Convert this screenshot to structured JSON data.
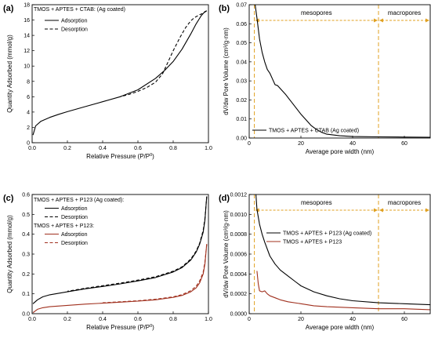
{
  "colors": {
    "black": "#000000",
    "red": "#a0301e",
    "orange": "#e0a020"
  },
  "chart_data": [
    {
      "panel": "(a)",
      "type": "line",
      "xlabel": "Relative Pressure (P/P",
      "xlabel_sup": "0",
      "xlabel_close": ")",
      "ylabel": "Quantity Adsorbed (mmol/g)",
      "xlim": [
        0,
        1.0
      ],
      "ylim": [
        0,
        18
      ],
      "xticks": [
        0.0,
        0.2,
        0.4,
        0.6,
        0.8,
        1.0
      ],
      "xtick_labels": [
        "0.0",
        "0.2",
        "0.4",
        "0.6",
        "0.8",
        "1.0"
      ],
      "yticks": [
        0,
        2,
        4,
        6,
        8,
        10,
        12,
        14,
        16,
        18
      ],
      "ytick_labels": [
        "0",
        "2",
        "4",
        "6",
        "8",
        "10",
        "12",
        "14",
        "16",
        "18"
      ],
      "legend_title": "TMOS + APTES + CTAB: (Ag coated)",
      "legend_position": "top-left",
      "series": [
        {
          "name": "Adsorption",
          "color": "#000000",
          "dash": "solid",
          "x": [
            0.005,
            0.02,
            0.05,
            0.1,
            0.15,
            0.2,
            0.3,
            0.4,
            0.5,
            0.6,
            0.7,
            0.75,
            0.8,
            0.85,
            0.9,
            0.93,
            0.96,
            0.98,
            0.99
          ],
          "y": [
            1.0,
            2.2,
            2.8,
            3.3,
            3.7,
            4.05,
            4.7,
            5.35,
            6.0,
            6.9,
            8.4,
            9.4,
            10.6,
            12.2,
            14.2,
            15.5,
            16.6,
            17.1,
            17.2
          ]
        },
        {
          "name": "Desorption",
          "color": "#000000",
          "dash": "dashed",
          "x": [
            0.99,
            0.97,
            0.95,
            0.92,
            0.9,
            0.87,
            0.84,
            0.8,
            0.77,
            0.74,
            0.7,
            0.65,
            0.6,
            0.55,
            0.5
          ],
          "y": [
            17.2,
            16.9,
            16.7,
            16.3,
            15.9,
            15.0,
            13.8,
            12.0,
            10.5,
            9.0,
            7.9,
            7.2,
            6.7,
            6.3,
            6.0
          ]
        }
      ]
    },
    {
      "panel": "(b)",
      "type": "line",
      "xlabel": "Average pore width (nm)",
      "ylabel": "dV/dw Pore Volume (cm³/g·nm)",
      "xlim": [
        0,
        70
      ],
      "ylim": [
        0,
        0.07
      ],
      "xticks": [
        0,
        20,
        40,
        60
      ],
      "xtick_labels": [
        "0",
        "20",
        "40",
        "60"
      ],
      "yticks": [
        0,
        0.01,
        0.02,
        0.03,
        0.04,
        0.05,
        0.06,
        0.07
      ],
      "ytick_labels": [
        "0.00",
        "0.01",
        "0.02",
        "0.03",
        "0.04",
        "0.05",
        "0.06",
        "0.07"
      ],
      "legend_position": "bottom-left",
      "region_boundaries_nm": [
        2,
        50
      ],
      "region_labels": [
        "mesopores",
        "macropores"
      ],
      "series": [
        {
          "name": "TMOS + APTES + CTAB (Ag coated)",
          "color": "#000000",
          "dash": "solid",
          "x": [
            2.3,
            3,
            4,
            5,
            6,
            7,
            8,
            9,
            10,
            11,
            12,
            14,
            16,
            18,
            20,
            22,
            24,
            26,
            28,
            30,
            35,
            40,
            50,
            60,
            70
          ],
          "y": [
            0.07,
            0.063,
            0.052,
            0.045,
            0.04,
            0.036,
            0.034,
            0.031,
            0.028,
            0.0275,
            0.026,
            0.023,
            0.0195,
            0.016,
            0.0125,
            0.0095,
            0.0065,
            0.0045,
            0.003,
            0.002,
            0.0012,
            0.0008,
            0.0006,
            0.0005,
            0.0004
          ]
        }
      ]
    },
    {
      "panel": "(c)",
      "type": "line",
      "xlabel": "Relative Pressure (P/P",
      "xlabel_sup": "0",
      "xlabel_close": ")",
      "ylabel": "Quantity Adsorbed (mmol/g)",
      "xlim": [
        0,
        1.0
      ],
      "ylim": [
        0,
        0.6
      ],
      "xticks": [
        0.0,
        0.2,
        0.4,
        0.6,
        0.8,
        1.0
      ],
      "xtick_labels": [
        "0.0",
        "0.2",
        "0.4",
        "0.6",
        "0.8",
        "1.0"
      ],
      "yticks": [
        0,
        0.1,
        0.2,
        0.3,
        0.4,
        0.5,
        0.6
      ],
      "ytick_labels": [
        "0.0",
        "0.1",
        "0.2",
        "0.3",
        "0.4",
        "0.5",
        "0.6"
      ],
      "legend_position": "top-left",
      "legend_groups": [
        "TMOS + APTES + P123 (Ag coated):",
        "TMOS + APTES + P123:"
      ],
      "series": [
        {
          "name": "Adsorption",
          "group": 0,
          "color": "#000000",
          "dash": "solid",
          "x": [
            0.005,
            0.03,
            0.06,
            0.1,
            0.2,
            0.3,
            0.4,
            0.5,
            0.6,
            0.7,
            0.8,
            0.85,
            0.9,
            0.93,
            0.95,
            0.97,
            0.98,
            0.99
          ],
          "y": [
            0.05,
            0.07,
            0.085,
            0.095,
            0.11,
            0.125,
            0.137,
            0.15,
            0.165,
            0.182,
            0.21,
            0.232,
            0.27,
            0.31,
            0.35,
            0.41,
            0.47,
            0.59
          ]
        },
        {
          "name": "Desorption",
          "group": 0,
          "color": "#000000",
          "dash": "dashed",
          "x": [
            0.99,
            0.98,
            0.97,
            0.95,
            0.93,
            0.9,
            0.85,
            0.8,
            0.7,
            0.6,
            0.5,
            0.4,
            0.3,
            0.2
          ],
          "y": [
            0.59,
            0.48,
            0.42,
            0.355,
            0.315,
            0.275,
            0.236,
            0.214,
            0.186,
            0.169,
            0.154,
            0.141,
            0.128,
            0.113
          ]
        },
        {
          "name": "Adsorption",
          "group": 1,
          "color": "#a0301e",
          "dash": "solid",
          "x": [
            0.005,
            0.03,
            0.06,
            0.1,
            0.2,
            0.3,
            0.4,
            0.5,
            0.6,
            0.7,
            0.8,
            0.85,
            0.9,
            0.93,
            0.95,
            0.97,
            0.98,
            0.99
          ],
          "y": [
            0.005,
            0.022,
            0.03,
            0.035,
            0.042,
            0.048,
            0.053,
            0.058,
            0.063,
            0.07,
            0.082,
            0.092,
            0.11,
            0.13,
            0.155,
            0.2,
            0.25,
            0.35
          ]
        },
        {
          "name": "Desorption",
          "group": 1,
          "color": "#a0301e",
          "dash": "dashed",
          "x": [
            0.99,
            0.98,
            0.97,
            0.95,
            0.93,
            0.9,
            0.85,
            0.8,
            0.7,
            0.6,
            0.5,
            0.4
          ],
          "y": [
            0.35,
            0.26,
            0.21,
            0.165,
            0.138,
            0.116,
            0.096,
            0.085,
            0.073,
            0.065,
            0.06,
            0.055
          ]
        }
      ]
    },
    {
      "panel": "(d)",
      "type": "line",
      "xlabel": "Average pore width (nm)",
      "ylabel": "dV/dw Pore Volume (cm³/g·nm)",
      "xlim": [
        0,
        70
      ],
      "ylim": [
        0,
        0.0012
      ],
      "xticks": [
        0,
        20,
        40,
        60
      ],
      "xtick_labels": [
        "0",
        "20",
        "40",
        "60"
      ],
      "yticks": [
        0,
        0.0002,
        0.0004,
        0.0006,
        0.0008,
        0.001,
        0.0012
      ],
      "ytick_labels": [
        "0.0000",
        "0.0002",
        "0.0004",
        "0.0006",
        "0.0008",
        "0.0010",
        "0.0012"
      ],
      "legend_position": "center-left",
      "region_boundaries_nm": [
        2,
        50
      ],
      "region_labels": [
        "mesopores",
        "macropores"
      ],
      "series": [
        {
          "name": "TMOS + APTES + P123 (Ag coated)",
          "color": "#000000",
          "dash": "solid",
          "x": [
            2.6,
            3,
            4,
            5,
            6,
            8,
            10,
            12,
            15,
            18,
            20,
            25,
            30,
            35,
            40,
            50,
            60,
            70
          ],
          "y": [
            0.0012,
            0.00105,
            0.0009,
            0.0008,
            0.00072,
            0.00058,
            0.0005,
            0.00044,
            0.00038,
            0.00032,
            0.00028,
            0.00022,
            0.00018,
            0.00015,
            0.00013,
            0.00011,
            0.0001,
            9e-05
          ]
        },
        {
          "name": "TMOS + APTES + P123",
          "color": "#a0301e",
          "dash": "solid",
          "x": [
            3,
            3.5,
            4,
            5,
            6,
            7,
            8,
            10,
            12,
            15,
            20,
            25,
            30,
            40,
            50,
            60,
            70
          ],
          "y": [
            0.00043,
            0.0003,
            0.00023,
            0.00022,
            0.00023,
            0.0002,
            0.00018,
            0.00016,
            0.00014,
            0.00012,
            0.0001,
            8e-05,
            7e-05,
            6e-05,
            5e-05,
            5e-05,
            4e-05
          ]
        }
      ]
    }
  ]
}
